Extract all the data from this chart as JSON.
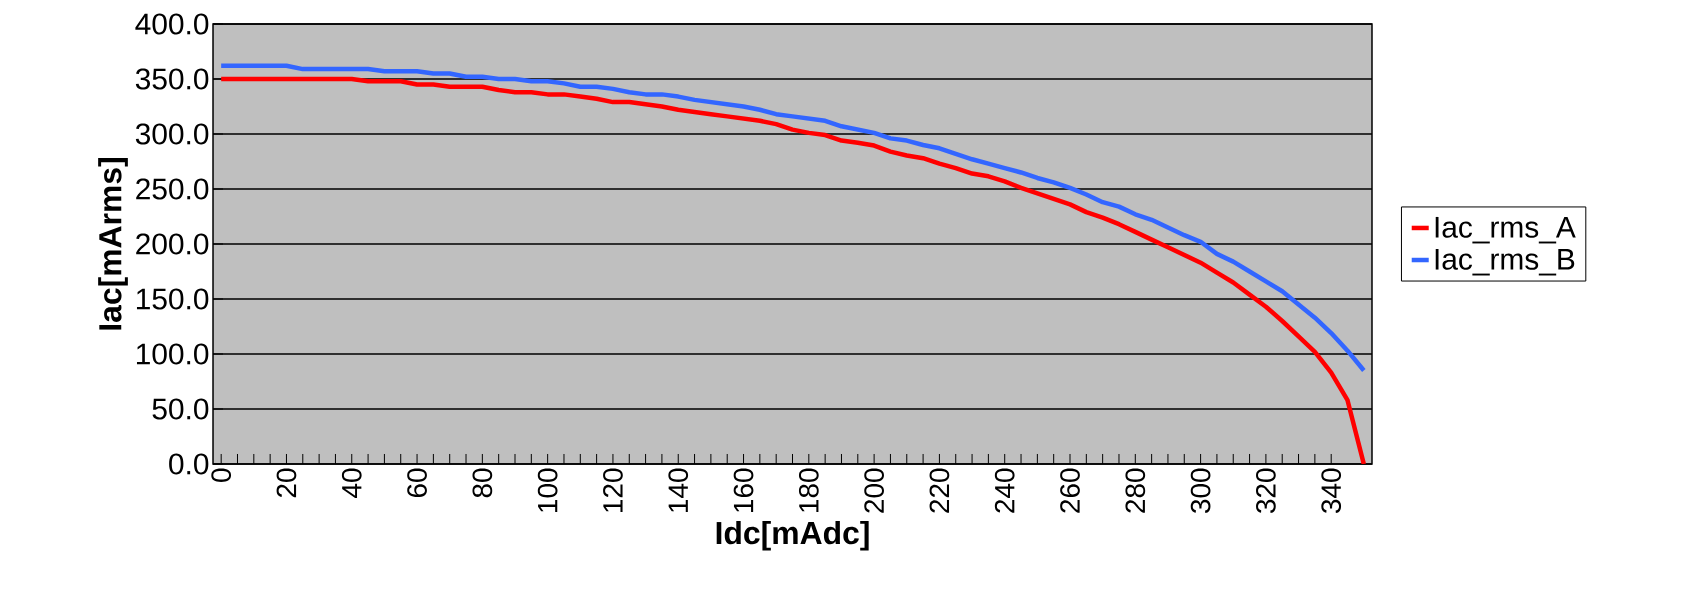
{
  "chart_data": {
    "type": "line",
    "xlabel": "Idc[mAdc]",
    "ylabel": "Iac[mArms]",
    "x": [
      0,
      5,
      10,
      15,
      20,
      25,
      30,
      35,
      40,
      45,
      50,
      55,
      60,
      65,
      70,
      75,
      80,
      85,
      90,
      95,
      100,
      105,
      110,
      115,
      120,
      125,
      130,
      135,
      140,
      145,
      150,
      155,
      160,
      165,
      170,
      175,
      180,
      185,
      190,
      195,
      200,
      205,
      210,
      215,
      220,
      225,
      230,
      235,
      240,
      245,
      250,
      255,
      260,
      265,
      270,
      275,
      280,
      285,
      290,
      295,
      300,
      305,
      310,
      315,
      320,
      325,
      330,
      335,
      340,
      345,
      350
    ],
    "series": [
      {
        "name": "Iac_rms_A",
        "color": "#ff0000",
        "values": [
          350,
          350,
          350,
          350,
          350,
          350,
          350,
          350,
          350,
          348,
          348,
          348,
          345,
          345,
          343,
          343,
          343,
          340,
          338,
          338,
          336,
          336,
          334,
          332,
          329,
          329,
          327,
          325,
          322,
          320,
          318,
          316,
          314,
          312,
          309,
          304,
          301,
          299,
          294,
          292,
          289.5,
          284,
          280.5,
          278,
          273,
          269,
          264,
          261.5,
          257,
          251,
          246,
          241,
          236,
          229,
          224,
          218,
          211,
          204,
          197,
          190,
          183,
          174,
          165,
          154,
          143,
          130,
          116,
          102,
          83,
          58,
          0
        ]
      },
      {
        "name": "Iac_rms_B",
        "color": "#3366ff",
        "values": [
          362,
          362,
          362,
          362,
          362,
          359,
          359,
          359,
          359,
          359,
          357,
          357,
          357,
          355,
          355,
          352,
          352,
          350,
          350,
          348,
          348,
          346,
          343,
          343,
          341,
          338,
          336,
          336,
          334,
          331,
          329,
          327,
          325,
          322,
          318,
          316,
          314,
          312,
          307,
          304,
          301,
          296,
          294,
          290,
          287,
          282,
          277,
          273,
          269,
          265,
          260,
          256,
          251,
          245,
          238,
          234,
          227,
          222,
          215,
          208,
          202,
          191,
          184,
          175,
          166,
          157,
          145,
          133,
          119,
          103,
          85
        ]
      }
    ],
    "xlim": [
      -2.5,
      352.5
    ],
    "xticks": [
      0,
      20,
      40,
      60,
      80,
      100,
      120,
      140,
      160,
      180,
      200,
      220,
      240,
      260,
      280,
      300,
      320,
      340
    ],
    "ylim": [
      0,
      400
    ],
    "yticks": [
      {
        "value": 0,
        "label": "0.0"
      },
      {
        "value": 50,
        "label": "50.0"
      },
      {
        "value": 100,
        "label": "100.0"
      },
      {
        "value": 150,
        "label": "150.0"
      },
      {
        "value": 200,
        "label": "200.0"
      },
      {
        "value": 250,
        "label": "250.0"
      },
      {
        "value": 300,
        "label": "300.0"
      },
      {
        "value": 350,
        "label": "350.0"
      },
      {
        "value": 400,
        "label": "400.0"
      }
    ],
    "grid": "y",
    "legend": "right"
  }
}
